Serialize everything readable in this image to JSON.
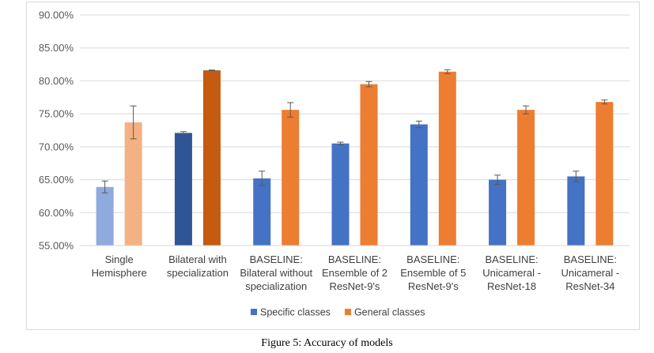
{
  "chart_data": {
    "type": "bar",
    "categories": [
      [
        "Single",
        "Hemisphere"
      ],
      [
        "Bilateral with",
        "specialization"
      ],
      [
        "BASELINE:",
        "Bilateral without",
        "specialization"
      ],
      [
        "BASELINE:",
        "Ensemble of 2",
        "ResNet-9's"
      ],
      [
        "BASELINE:",
        "Ensemble of 5",
        "ResNet-9's"
      ],
      [
        "BASELINE:",
        "Unicameral -",
        "ResNet-18"
      ],
      [
        "BASELINE:",
        "Unicameral -",
        "ResNet-34"
      ]
    ],
    "series": [
      {
        "name": "Specific classes",
        "values": [
          63.9,
          72.1,
          65.2,
          70.5,
          73.4,
          65.0,
          65.5
        ],
        "errors": [
          0.9,
          0.2,
          1.1,
          0.2,
          0.5,
          0.7,
          0.8
        ],
        "color": "#4472c4",
        "bar_colors": [
          "#8faadc",
          "#2f5597",
          "#4472c4",
          "#4472c4",
          "#4472c4",
          "#4472c4",
          "#4472c4"
        ]
      },
      {
        "name": "General classes",
        "values": [
          73.7,
          81.6,
          75.6,
          79.5,
          81.4,
          75.6,
          76.8
        ],
        "errors": [
          2.5,
          0.05,
          1.1,
          0.4,
          0.3,
          0.6,
          0.3
        ],
        "color": "#ed7d31",
        "bar_colors": [
          "#f4b183",
          "#c55a11",
          "#ed7d31",
          "#ed7d31",
          "#ed7d31",
          "#ed7d31",
          "#ed7d31"
        ]
      }
    ],
    "ylim": [
      55,
      90
    ],
    "yticks": [
      "55.00%",
      "60.00%",
      "65.00%",
      "70.00%",
      "75.00%",
      "80.00%",
      "85.00%",
      "90.00%"
    ],
    "grid": true,
    "legend_position": "bottom"
  },
  "caption": "Figure 5: Accuracy of models"
}
